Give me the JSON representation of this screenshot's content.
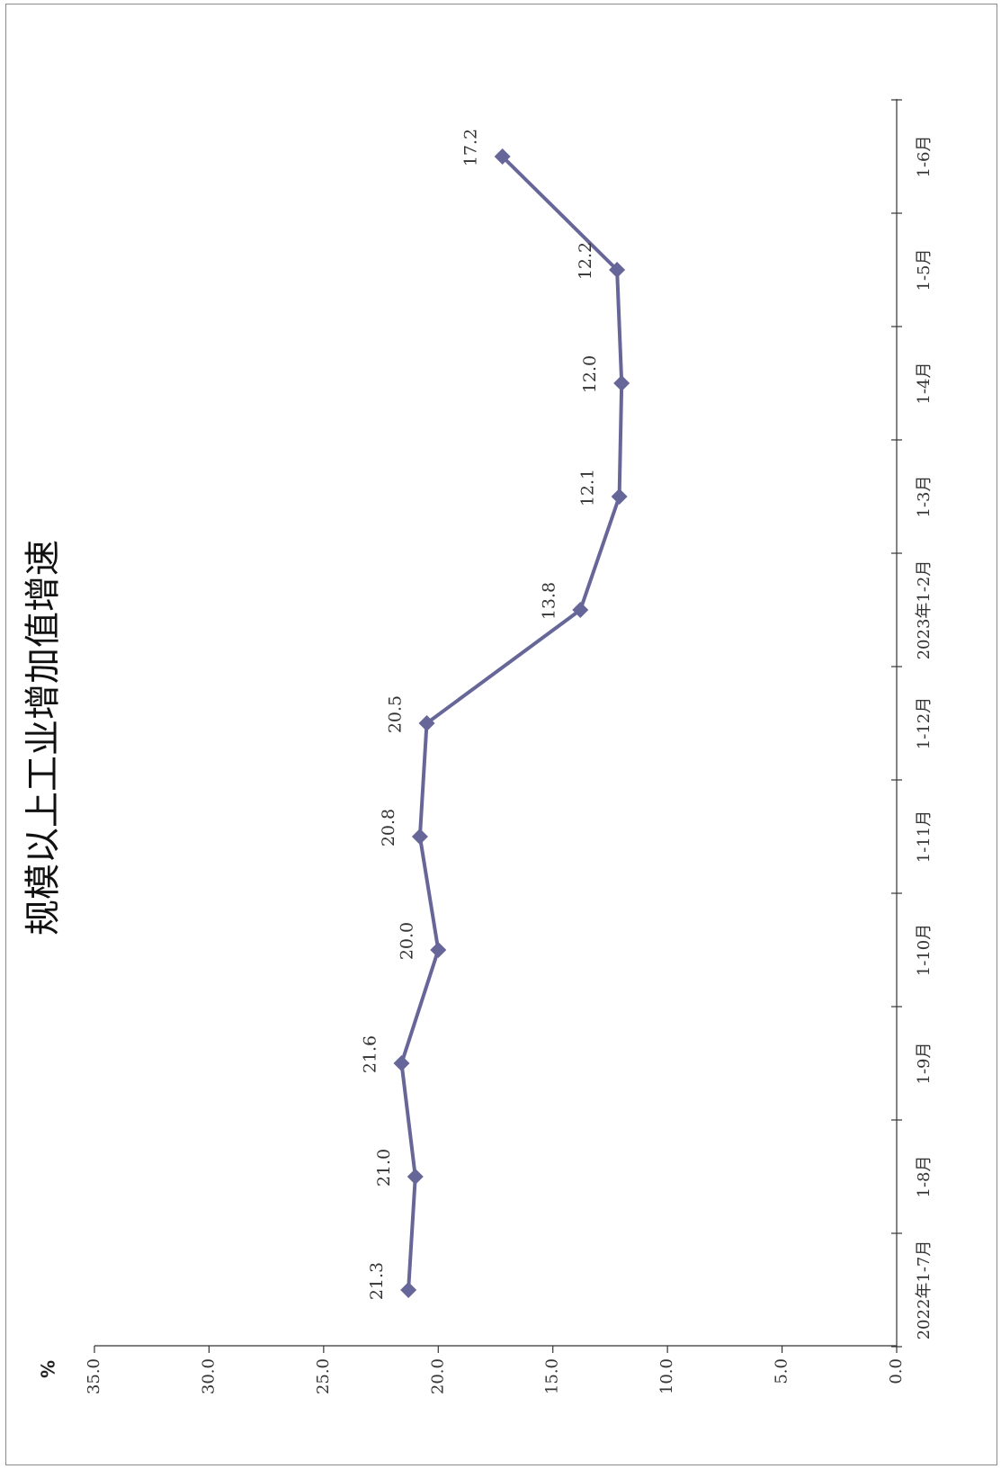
{
  "chart_data": {
    "type": "line",
    "title": "规模以上工业增加值增速",
    "ylabel": "%",
    "xlabel": "",
    "categories": [
      "2022年1-7月",
      "1-8月",
      "1-9月",
      "1-10月",
      "1-11月",
      "1-12月",
      "2023年1-2月",
      "1-3月",
      "1-4月",
      "1-5月",
      "1-6月"
    ],
    "series": [
      {
        "values": [
          21.3,
          21.0,
          21.6,
          20.0,
          20.8,
          20.5,
          13.8,
          12.1,
          12.0,
          12.2,
          17.2
        ],
        "color": "#666699"
      }
    ],
    "ylim": [
      0,
      35
    ],
    "yticks": [
      "0.0",
      "5.0",
      "10.0",
      "15.0",
      "20.0",
      "25.0",
      "30.0",
      "35.0"
    ],
    "data_labels": [
      "21.3",
      "21.0",
      "21.6",
      "20.0",
      "20.8",
      "20.5",
      "13.8",
      "12.1",
      "12.0",
      "12.2",
      "17.2"
    ],
    "grid": false,
    "legend": "none",
    "orientation": "rotated-90-clockwise"
  }
}
